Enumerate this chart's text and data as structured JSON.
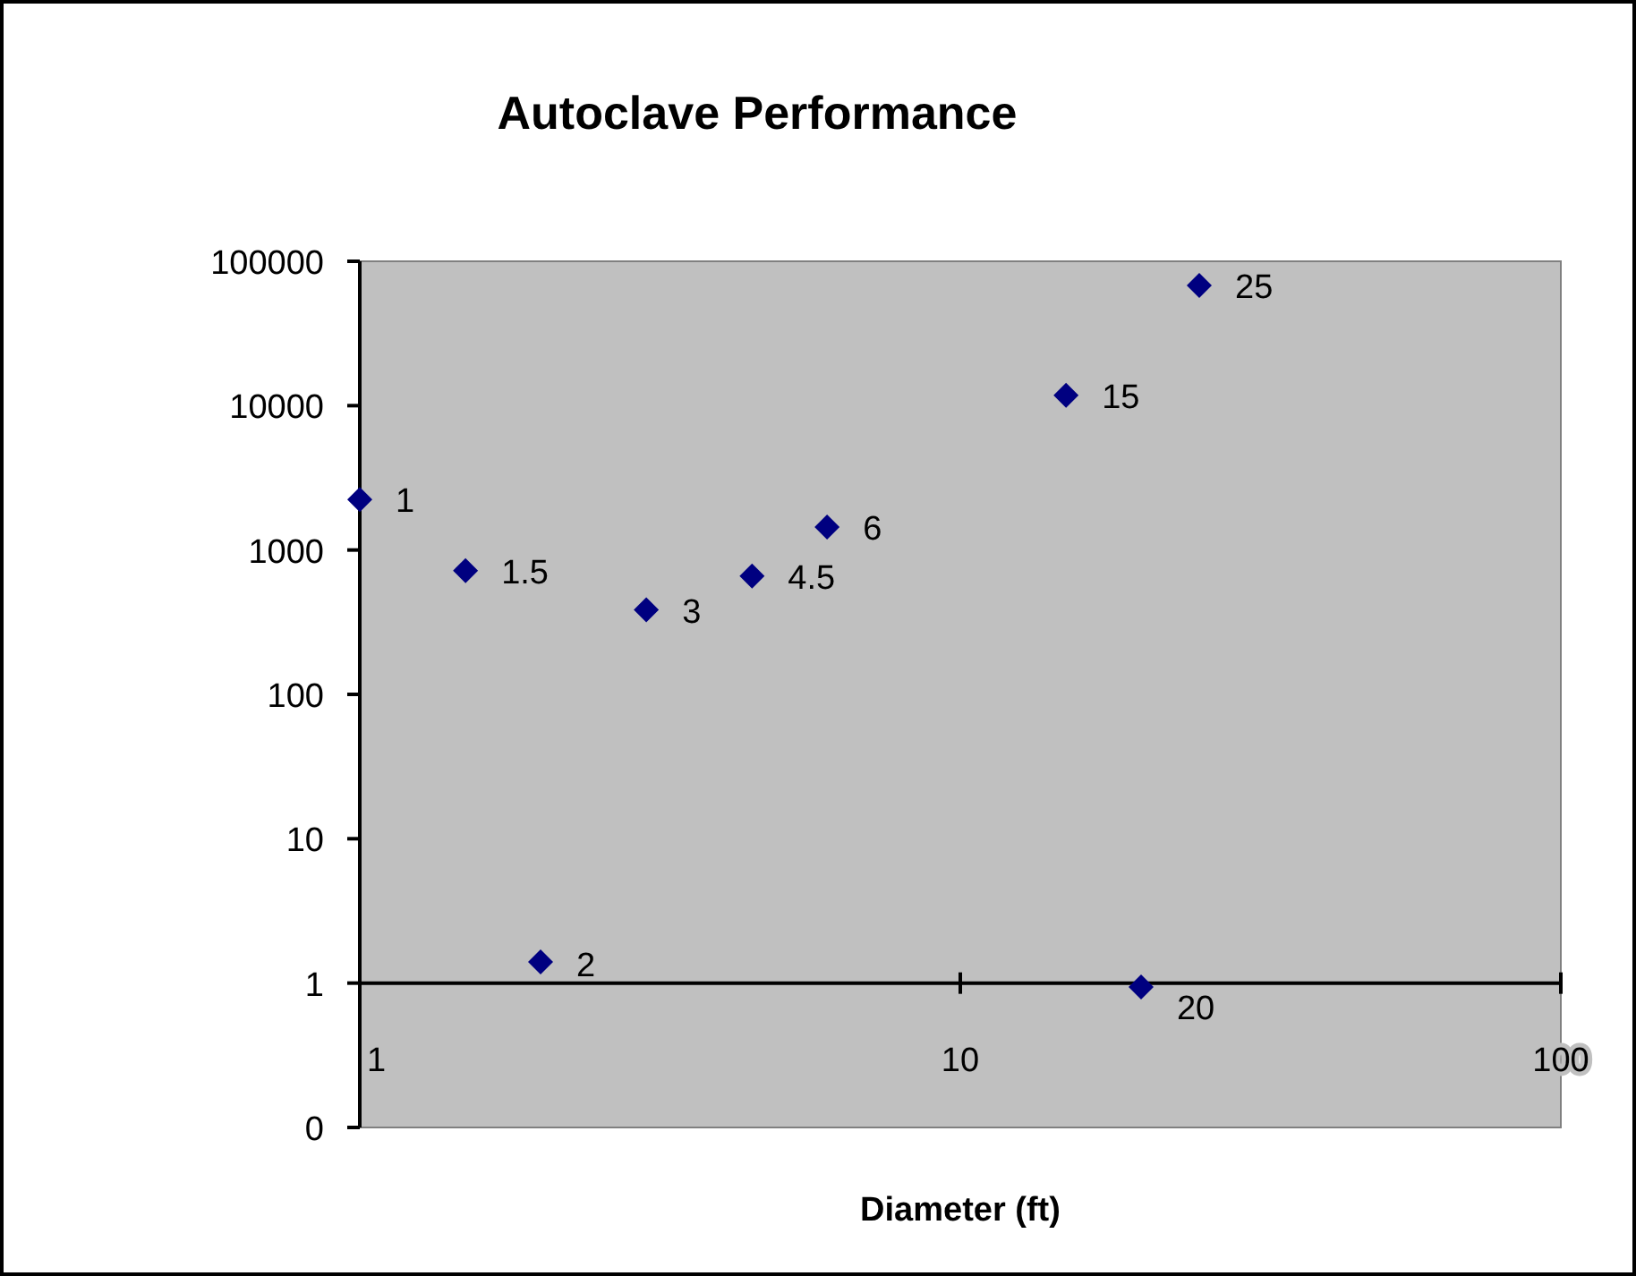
{
  "chart_data": {
    "type": "scatter",
    "title": "Autoclave Performance",
    "xlabel": "Diameter (ft)",
    "x": [
      1,
      1.5,
      2,
      3,
      4.5,
      6,
      15,
      20,
      25
    ],
    "series": [
      {
        "color": "#000080",
        "values": [
          2240,
          720,
          1.4,
          385,
          660,
          1440,
          11800,
          0.94,
          68000
        ]
      }
    ],
    "annotations": [
      {
        "text": "1",
        "x": 1,
        "y": 2240
      },
      {
        "text": "1.5",
        "x": 1.5,
        "y": 720
      },
      {
        "text": "2",
        "x": 2,
        "y": 1.4
      },
      {
        "text": "3",
        "x": 3,
        "y": 385
      },
      {
        "text": "4.5",
        "x": 4.5,
        "y": 660
      },
      {
        "text": "6",
        "x": 6,
        "y": 1440
      },
      {
        "text": "15",
        "x": 15,
        "y": 11800
      },
      {
        "text": "20",
        "x": 20,
        "y": 0.94
      },
      {
        "text": "25",
        "x": 25,
        "y": 68000
      }
    ],
    "log": "xy",
    "xlim": [
      1,
      100
    ],
    "xticks": [
      1,
      10,
      100
    ],
    "ylim": [
      0.1,
      100000
    ],
    "yticks": [
      {
        "value": 0.1,
        "label": "0"
      },
      1,
      10,
      100,
      1000,
      10000,
      100000
    ],
    "marker": "diamond"
  }
}
